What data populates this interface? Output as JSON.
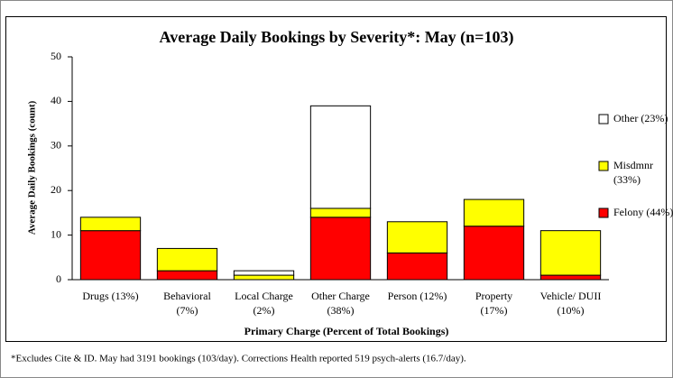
{
  "chart_data": {
    "type": "stacked_bar",
    "title": "Average Daily Bookings by Severity*: May (n=103)",
    "x_label": "Primary Charge (Percent of Total Bookings)",
    "y_label": "Average Daily Bookings (count)",
    "categories": [
      "Drugs (13%)",
      "Behavioral (7%)",
      "Local Charge (2%)",
      "Other Charge (38%)",
      "Person (12%)",
      "Property (17%)",
      "Vehicle/ DUII (10%)"
    ],
    "series": [
      {
        "name": "Felony (44%)",
        "color": "#ff0000",
        "values": [
          11,
          2,
          0,
          14,
          6,
          12,
          1
        ]
      },
      {
        "name": "Misdmnr (33%)",
        "color": "#ffff00",
        "values": [
          3,
          5,
          1,
          2,
          7,
          6,
          10
        ]
      },
      {
        "name": "Other (23%)",
        "color": "#ffffff",
        "values": [
          0,
          0,
          1,
          23,
          0,
          0,
          0
        ]
      }
    ],
    "ylim": [
      0,
      50
    ],
    "yticks": [
      0,
      10,
      20,
      30,
      40,
      50
    ],
    "footnote": "*Excludes Cite & ID. May had 3191 bookings (103/day). Corrections Health reported 519 psych-alerts (16.7/day)."
  }
}
